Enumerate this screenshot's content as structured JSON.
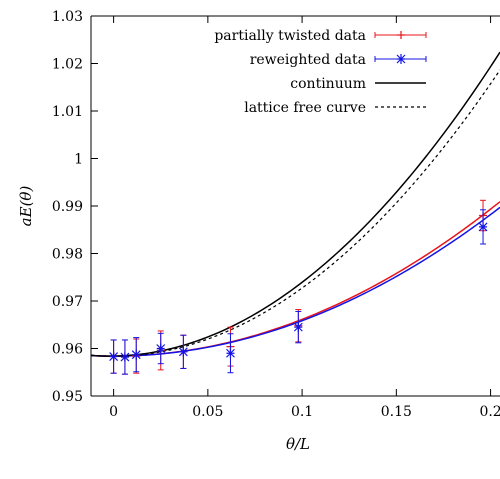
{
  "chart_data": {
    "type": "scatter",
    "title": "",
    "xlabel": "θ/L",
    "ylabel": "aE(θ)",
    "xlim": [
      -0.012,
      0.205
    ],
    "ylim": [
      0.95,
      1.03
    ],
    "x_ticks": [
      "0",
      "0.05",
      "0.1",
      "0.15",
      "0.2"
    ],
    "x_tick_values": [
      0,
      0.05,
      0.1,
      0.15,
      0.2
    ],
    "y_ticks": [
      "0.95",
      "0.96",
      "0.97",
      "0.98",
      "0.99",
      "1",
      "1.01",
      "1.02",
      "1.03"
    ],
    "y_tick_values": [
      0.95,
      0.96,
      0.97,
      0.98,
      0.99,
      1.0,
      1.01,
      1.02,
      1.03
    ],
    "grid": false,
    "legend_position": "top-right",
    "series": [
      {
        "name": "partially twisted data",
        "kind": "errorbar-points",
        "marker": "plus",
        "color": "#e8141a",
        "points": [
          {
            "x": 0.0,
            "y": 0.9583,
            "err": 0.0035
          },
          {
            "x": 0.006,
            "y": 0.9582,
            "err": 0.0036
          },
          {
            "x": 0.012,
            "y": 0.9584,
            "err": 0.0036
          },
          {
            "x": 0.025,
            "y": 0.9596,
            "err": 0.0041
          },
          {
            "x": 0.037,
            "y": 0.9593,
            "err": 0.0035
          },
          {
            "x": 0.062,
            "y": 0.9604,
            "err": 0.0041
          },
          {
            "x": 0.098,
            "y": 0.9648,
            "err": 0.0034
          },
          {
            "x": 0.196,
            "y": 0.988,
            "err": 0.0032
          }
        ]
      },
      {
        "name": "reweighted data",
        "kind": "errorbar-points",
        "marker": "star",
        "color": "#1414e6",
        "points": [
          {
            "x": 0.0,
            "y": 0.9583,
            "err": 0.0035
          },
          {
            "x": 0.006,
            "y": 0.9582,
            "err": 0.0036
          },
          {
            "x": 0.012,
            "y": 0.9587,
            "err": 0.0036
          },
          {
            "x": 0.025,
            "y": 0.96,
            "err": 0.0032
          },
          {
            "x": 0.037,
            "y": 0.9593,
            "err": 0.0035
          },
          {
            "x": 0.062,
            "y": 0.959,
            "err": 0.0041
          },
          {
            "x": 0.098,
            "y": 0.9645,
            "err": 0.0033
          },
          {
            "x": 0.196,
            "y": 0.9856,
            "err": 0.0036
          }
        ]
      },
      {
        "name": "",
        "kind": "fit-curve",
        "color": "#e8141a",
        "dash": "solid",
        "legend": false,
        "curve": {
          "a": 0.9584,
          "b": 0.0,
          "c": 0.7735
        }
      },
      {
        "name": "",
        "kind": "fit-curve",
        "color": "#1414e6",
        "dash": "solid",
        "legend": false,
        "curve": {
          "a": 0.9584,
          "b": 0.0,
          "c": 0.745
        }
      },
      {
        "name": "continuum",
        "kind": "curve",
        "color": "#000000",
        "dash": "solid",
        "curve": {
          "a": 0.9584,
          "b": 0.006,
          "c": 1.4934
        }
      },
      {
        "name": "lattice free curve",
        "kind": "curve",
        "color": "#000000",
        "dash": "dashed",
        "curve": {
          "a": 0.9584,
          "b": 0.0,
          "c": 1.4334
        }
      }
    ]
  }
}
